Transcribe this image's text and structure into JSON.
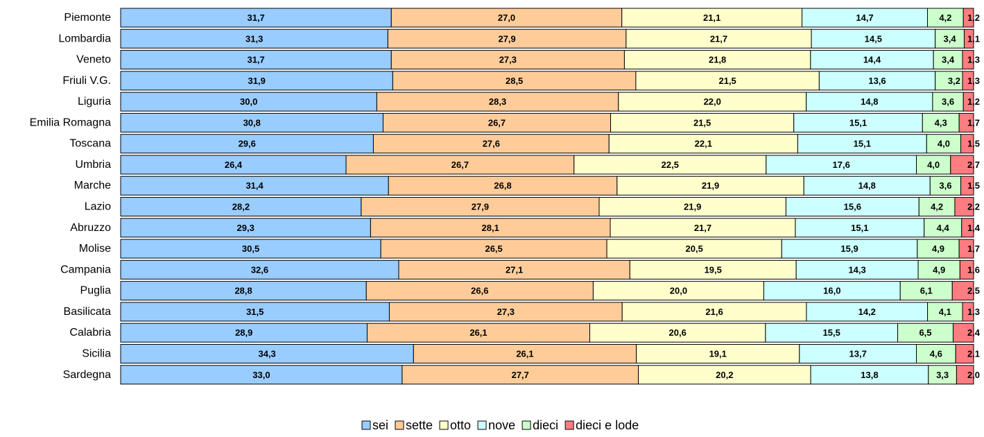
{
  "chart_data": {
    "type": "bar",
    "orientation": "horizontal",
    "stacked": true,
    "percent_stacked": true,
    "title": "",
    "xlabel": "",
    "ylabel": "",
    "legend_position": "bottom",
    "grid": false,
    "categories": [
      "Piemonte",
      "Lombardia",
      "Veneto",
      "Friuli V.G.",
      "Liguria",
      "Emilia Romagna",
      "Toscana",
      "Umbria",
      "Marche",
      "Lazio",
      "Abruzzo",
      "Molise",
      "Campania",
      "Puglia",
      "Basilicata",
      "Calabria",
      "Sicilia",
      "Sardegna"
    ],
    "series": [
      {
        "name": "sei",
        "color": "#99CCFF",
        "values": [
          31.7,
          31.3,
          31.7,
          31.9,
          30.0,
          30.8,
          29.6,
          26.4,
          31.4,
          28.2,
          29.3,
          30.5,
          32.6,
          28.8,
          31.5,
          28.9,
          34.3,
          33.0
        ],
        "labels": [
          "31,7",
          "31,3",
          "31,7",
          "31,9",
          "30,0",
          "30,8",
          "29,6",
          "26,4",
          "31,4",
          "28,2",
          "29,3",
          "30,5",
          "32,6",
          "28,8",
          "31,5",
          "28,9",
          "34,3",
          "33,0"
        ]
      },
      {
        "name": "sette",
        "color": "#FFCC99",
        "values": [
          27.0,
          27.9,
          27.3,
          28.5,
          28.3,
          26.7,
          27.6,
          26.7,
          26.8,
          27.9,
          28.1,
          26.5,
          27.1,
          26.6,
          27.3,
          26.1,
          26.1,
          27.7
        ],
        "labels": [
          "27,0",
          "27,9",
          "27,3",
          "28,5",
          "28,3",
          "26,7",
          "27,6",
          "26,7",
          "26,8",
          "27,9",
          "28,1",
          "26,5",
          "27,1",
          "26,6",
          "27,3",
          "26,1",
          "26,1",
          "27,7"
        ]
      },
      {
        "name": "otto",
        "color": "#FFFFCC",
        "values": [
          21.1,
          21.7,
          21.8,
          21.5,
          22.0,
          21.5,
          22.1,
          22.5,
          21.9,
          21.9,
          21.7,
          20.5,
          19.5,
          20.0,
          21.6,
          20.6,
          19.1,
          20.2
        ],
        "labels": [
          "21,1",
          "21,7",
          "21,8",
          "21,5",
          "22,0",
          "21,5",
          "22,1",
          "22,5",
          "21,9",
          "21,9",
          "21,7",
          "20,5",
          "19,5",
          "20,0",
          "21,6",
          "20,6",
          "19,1",
          "20,2"
        ]
      },
      {
        "name": "nove",
        "color": "#CCFFFF",
        "values": [
          14.7,
          14.5,
          14.4,
          13.6,
          14.8,
          15.1,
          15.1,
          17.6,
          14.8,
          15.6,
          15.1,
          15.9,
          14.3,
          16.0,
          14.2,
          15.5,
          13.7,
          13.8
        ],
        "labels": [
          "14,7",
          "14,5",
          "14,4",
          "13,6",
          "14,8",
          "15,1",
          "15,1",
          "17,6",
          "14,8",
          "15,6",
          "15,1",
          "15,9",
          "14,3",
          "16,0",
          "14,2",
          "15,5",
          "13,7",
          "13,8"
        ]
      },
      {
        "name": "dieci",
        "color": "#CCFFCC",
        "values": [
          4.2,
          3.4,
          3.4,
          3.2,
          3.6,
          4.3,
          4.0,
          4.0,
          3.6,
          4.2,
          4.4,
          4.9,
          4.9,
          6.1,
          4.1,
          6.5,
          4.6,
          3.3
        ],
        "labels": [
          "4,2",
          "3,4",
          "3,4",
          "3,2",
          "3,6",
          "4,3",
          "4,0",
          "4,0",
          "3,6",
          "4,2",
          "4,4",
          "4,9",
          "4,9",
          "6,1",
          "4,1",
          "6,5",
          "4,6",
          "3,3"
        ]
      },
      {
        "name": "dieci e lode",
        "color": "#FF7C80",
        "values": [
          1.2,
          1.1,
          1.3,
          1.3,
          1.2,
          1.7,
          1.5,
          2.7,
          1.5,
          2.2,
          1.4,
          1.7,
          1.6,
          2.5,
          1.3,
          2.4,
          2.1,
          2.0
        ],
        "labels": [
          "1,2",
          "1,1",
          "1,3",
          "1,3",
          "1,2",
          "1,7",
          "1,5",
          "2,7",
          "1,5",
          "2,2",
          "1,4",
          "1,7",
          "1,6",
          "2,5",
          "1,3",
          "2,4",
          "2,1",
          "2,0"
        ]
      }
    ]
  }
}
